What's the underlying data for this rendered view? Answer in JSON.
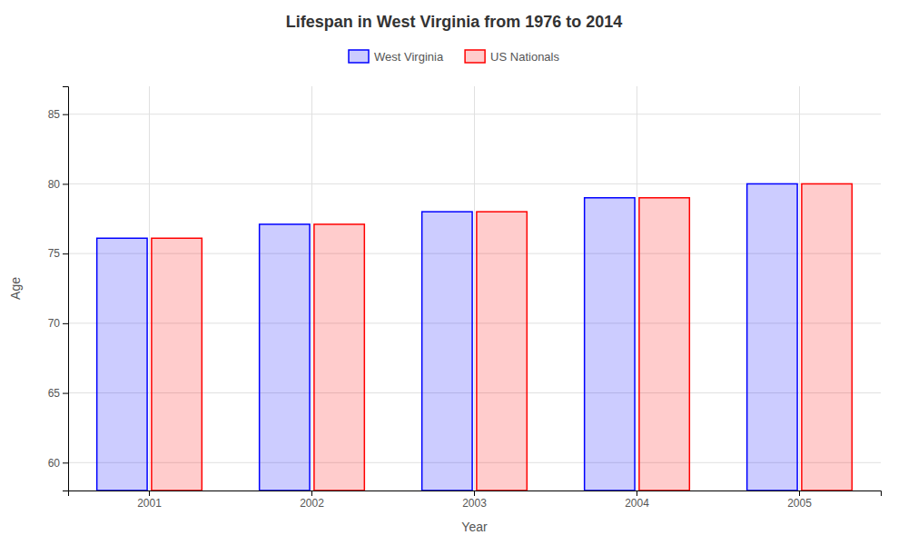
{
  "chart_data": {
    "type": "bar",
    "title": "Lifespan in West Virginia from 1976 to 2014",
    "xlabel": "Year",
    "ylabel": "Age",
    "categories": [
      "2001",
      "2002",
      "2003",
      "2004",
      "2005"
    ],
    "series": [
      {
        "name": "West Virginia",
        "color": "#0000ff",
        "values": [
          76.1,
          77.1,
          78.0,
          79.0,
          80.0
        ]
      },
      {
        "name": "US Nationals",
        "color": "#ff0000",
        "values": [
          76.1,
          77.1,
          78.0,
          79.0,
          80.0
        ]
      }
    ],
    "ylim": [
      58,
      87
    ],
    "yticks": [
      60,
      65,
      70,
      75,
      80,
      85
    ],
    "grid": true,
    "legend": "top"
  }
}
